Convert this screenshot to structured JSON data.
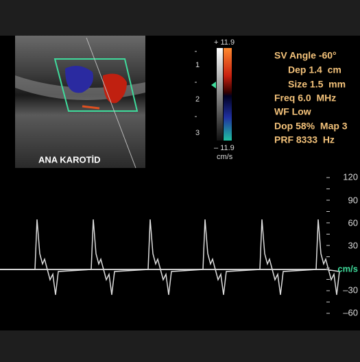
{
  "image_label": "ANA KAROTİD",
  "color_bar": {
    "top": "+ 11.9",
    "bottom": "– 11.9",
    "unit": "cm/s"
  },
  "depth_marks": [
    "1",
    "2",
    "3"
  ],
  "settings": [
    "SV Angle -60°",
    "Dep 1.4  cm",
    "Size 1.5  mm",
    "Freq 6.0  MHz",
    "WF Low",
    "Dop 58%  Map 3",
    "PRF 8333  Hz"
  ],
  "velocity_scale": {
    "ticks": [
      "120",
      "90",
      "60",
      "30",
      "–30",
      "–60"
    ],
    "unit": "cm/s"
  }
}
